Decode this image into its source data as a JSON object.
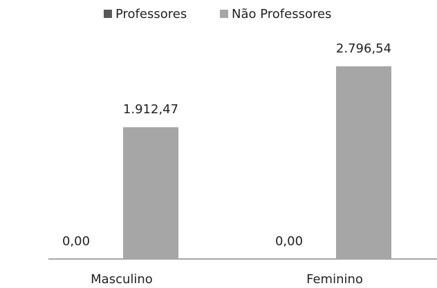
{
  "chart_data": {
    "type": "bar",
    "categories": [
      "Masculino",
      "Feminino"
    ],
    "series": [
      {
        "name": "Professores",
        "color": "#595959",
        "values": [
          0,
          0
        ],
        "value_labels": [
          "0,00",
          "0,00"
        ]
      },
      {
        "name": "Não Professores",
        "color": "#a6a6a6",
        "values": [
          1912.47,
          2796.54
        ],
        "value_labels": [
          "1.912,47",
          "2.796,54"
        ]
      }
    ]
  }
}
